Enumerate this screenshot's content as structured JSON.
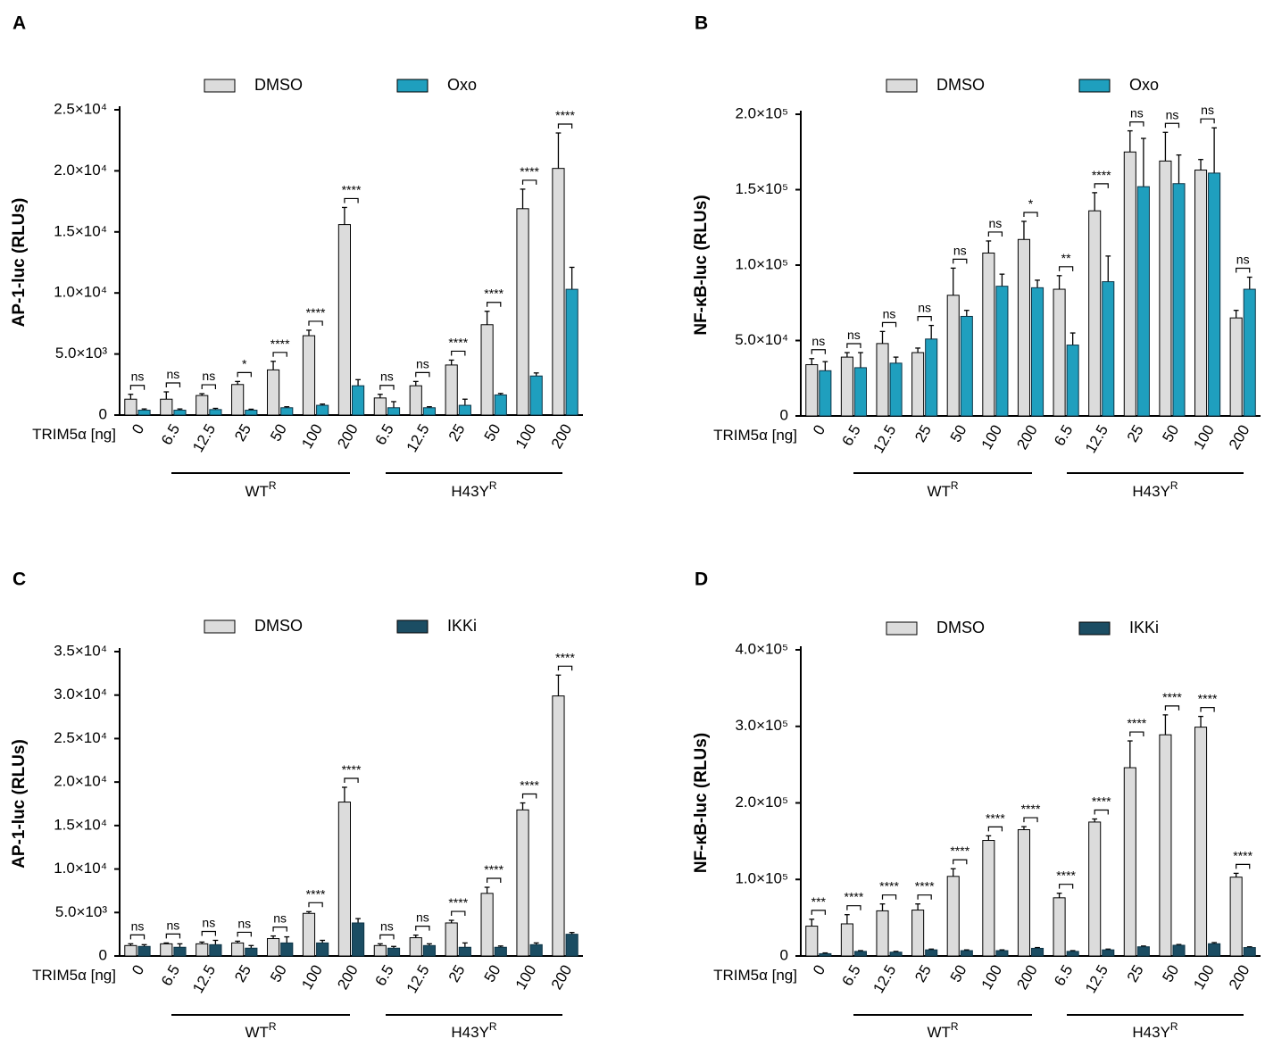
{
  "chart_data": [
    {
      "type": "bar",
      "panel": "A",
      "ylabel": "AP-1-luc (RLUs)",
      "xlabel": "TRIM5α [ng]",
      "ylim": [
        0,
        25000
      ],
      "yticks": [
        "0",
        "5.0×10³",
        "1.0×10⁴",
        "1.5×10⁴",
        "2.0×10⁴",
        "2.5×10⁴"
      ],
      "categories": [
        "0",
        "6.5",
        "12.5",
        "25",
        "50",
        "100",
        "200",
        "6.5",
        "12.5",
        "25",
        "50",
        "100",
        "200"
      ],
      "groups": [
        {
          "label": "WT",
          "sup": "R"
        },
        {
          "label": "H43Y",
          "sup": "R"
        }
      ],
      "series": [
        {
          "name": "DMSO",
          "color": "#dcdcdc",
          "values": [
            1300,
            1300,
            1600,
            2500,
            3700,
            6500,
            15600,
            1400,
            2400,
            4100,
            7400,
            16900,
            20200
          ],
          "errors": [
            400,
            600,
            150,
            250,
            700,
            450,
            1400,
            300,
            350,
            400,
            1100,
            1600,
            2900
          ]
        },
        {
          "name": "Oxo",
          "color": "#1f9fbe",
          "values": [
            400,
            400,
            450,
            400,
            600,
            800,
            2400,
            600,
            600,
            800,
            1650,
            3200,
            10300
          ],
          "errors": [
            100,
            100,
            100,
            80,
            80,
            100,
            500,
            500,
            80,
            500,
            120,
            250,
            1800
          ]
        }
      ],
      "significance": [
        "ns",
        "ns",
        "ns",
        "*",
        "****",
        "****",
        "****",
        "ns",
        "ns",
        "****",
        "****",
        "****",
        "****"
      ]
    },
    {
      "type": "bar",
      "panel": "B",
      "ylabel": "NF-κB-luc (RLUs)",
      "xlabel": "TRIM5α [ng]",
      "ylim": [
        0,
        200000
      ],
      "yticks": [
        "0",
        "5.0×10⁴",
        "1.0×10⁵",
        "1.5×10⁵",
        "2.0×10⁵"
      ],
      "categories": [
        "0",
        "6.5",
        "12.5",
        "25",
        "50",
        "100",
        "200",
        "6.5",
        "12.5",
        "25",
        "50",
        "100",
        "200"
      ],
      "groups": [
        {
          "label": "WT",
          "sup": "R"
        },
        {
          "label": "H43Y",
          "sup": "R"
        }
      ],
      "series": [
        {
          "name": "DMSO",
          "color": "#dcdcdc",
          "values": [
            34000,
            39000,
            48000,
            42000,
            80000,
            108000,
            117000,
            84000,
            136000,
            175000,
            169000,
            163000,
            65000
          ],
          "errors": [
            4000,
            3000,
            8000,
            3000,
            18000,
            8000,
            12000,
            9000,
            12000,
            14000,
            19000,
            7000,
            5000
          ]
        },
        {
          "name": "Oxo",
          "color": "#1f9fbe",
          "values": [
            30000,
            32000,
            35000,
            51000,
            66000,
            86000,
            85000,
            47000,
            89000,
            152000,
            154000,
            161000,
            84000
          ],
          "errors": [
            6000,
            10000,
            4000,
            9000,
            4000,
            8000,
            5000,
            8000,
            17000,
            32000,
            19000,
            30000,
            8000
          ]
        }
      ],
      "significance": [
        "ns",
        "ns",
        "ns",
        "ns",
        "ns",
        "ns",
        "*",
        "**",
        "****",
        "ns",
        "ns",
        "ns",
        "ns"
      ]
    },
    {
      "type": "bar",
      "panel": "C",
      "ylabel": "AP-1-luc (RLUs)",
      "xlabel": "TRIM5α [ng]",
      "ylim": [
        0,
        35000
      ],
      "yticks": [
        "0",
        "5.0×10³",
        "1.0×10⁴",
        "1.5×10⁴",
        "2.0×10⁴",
        "2.5×10⁴",
        "3.0×10⁴",
        "3.5×10⁴"
      ],
      "categories": [
        "0",
        "6.5",
        "12.5",
        "25",
        "50",
        "100",
        "200",
        "6.5",
        "12.5",
        "25",
        "50",
        "100",
        "200"
      ],
      "groups": [
        {
          "label": "WT",
          "sup": "R"
        },
        {
          "label": "H43Y",
          "sup": "R"
        }
      ],
      "series": [
        {
          "name": "DMSO",
          "color": "#dcdcdc",
          "values": [
            1200,
            1400,
            1400,
            1500,
            2000,
            4900,
            17700,
            1200,
            2100,
            3800,
            7200,
            16800,
            29900
          ],
          "errors": [
            200,
            100,
            200,
            200,
            300,
            200,
            1700,
            200,
            300,
            300,
            700,
            800,
            2400
          ]
        },
        {
          "name": "IKKi",
          "color": "#1b4d63",
          "values": [
            1100,
            1000,
            1300,
            900,
            1500,
            1500,
            3800,
            900,
            1200,
            1000,
            1000,
            1300,
            2500
          ],
          "errors": [
            200,
            400,
            500,
            300,
            700,
            300,
            500,
            200,
            200,
            500,
            150,
            200,
            200
          ]
        }
      ],
      "significance": [
        "ns",
        "ns",
        "ns",
        "ns",
        "ns",
        "****",
        "****",
        "ns",
        "ns",
        "****",
        "****",
        "****",
        "****"
      ]
    },
    {
      "type": "bar",
      "panel": "D",
      "ylabel": "NF-κB-luc (RLUs)",
      "xlabel": "TRIM5α [ng]",
      "ylim": [
        0,
        400000
      ],
      "yticks": [
        "0",
        "1.0×10⁵",
        "2.0×10⁵",
        "3.0×10⁵",
        "4.0×10⁵"
      ],
      "categories": [
        "0",
        "6.5",
        "12.5",
        "25",
        "50",
        "100",
        "200",
        "6.5",
        "12.5",
        "25",
        "50",
        "100",
        "200"
      ],
      "groups": [
        {
          "label": "WT",
          "sup": "R"
        },
        {
          "label": "H43Y",
          "sup": "R"
        }
      ],
      "series": [
        {
          "name": "DMSO",
          "color": "#dcdcdc",
          "values": [
            39000,
            42000,
            59000,
            60000,
            104000,
            151000,
            165000,
            76000,
            175000,
            246000,
            289000,
            299000,
            103000
          ],
          "errors": [
            9000,
            12000,
            9000,
            8000,
            10000,
            6000,
            4000,
            6000,
            4000,
            35000,
            26000,
            14000,
            5000
          ]
        },
        {
          "name": "IKKi",
          "color": "#1b4d63",
          "values": [
            3000,
            6000,
            5000,
            8000,
            7000,
            7000,
            10000,
            6000,
            8000,
            12000,
            14000,
            16000,
            11000
          ],
          "errors": [
            1000,
            1000,
            1000,
            1000,
            1000,
            1000,
            1000,
            1000,
            1000,
            1000,
            1000,
            1500,
            1000
          ]
        }
      ],
      "significance": [
        "***",
        "****",
        "****",
        "****",
        "****",
        "****",
        "****",
        "****",
        "****",
        "****",
        "****",
        "****",
        "****"
      ]
    }
  ]
}
